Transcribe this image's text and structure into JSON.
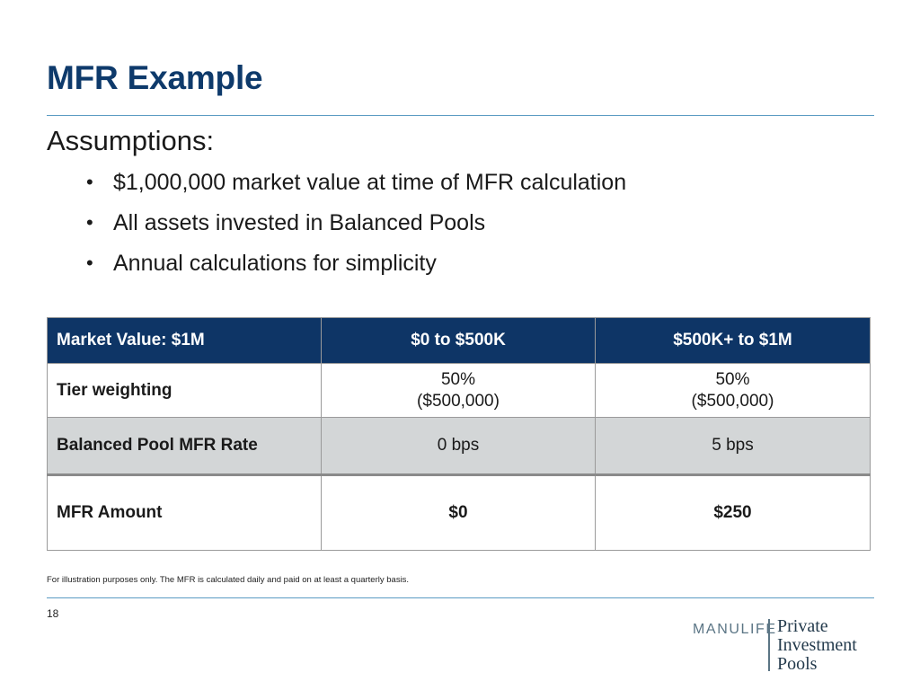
{
  "title": "MFR Example",
  "subtitle": "Assumptions:",
  "bullets": [
    "$1,000,000 market value at time of MFR calculation",
    "All assets invested in Balanced Pools",
    "Annual calculations for simplicity"
  ],
  "bullet_glyph": "•",
  "table": {
    "headers": [
      "Market Value: $1M",
      "$0 to $500K",
      "$500K+ to $1M"
    ],
    "rows": [
      {
        "label": "Tier weighting",
        "cells": [
          [
            "50%",
            "($500,000)"
          ],
          [
            "50%",
            "($500,000)"
          ]
        ]
      },
      {
        "label": "Balanced Pool MFR Rate",
        "cells": [
          [
            "0 bps"
          ],
          [
            "5 bps"
          ]
        ]
      },
      {
        "label": "MFR Amount",
        "cells": [
          [
            "$0"
          ],
          [
            "$250"
          ]
        ]
      }
    ]
  },
  "footnote": "For illustration purposes only. The MFR is calculated daily and paid on at least a quarterly basis.",
  "page_number": "18",
  "logo": {
    "brand": "MANULIFE",
    "product_lines": [
      "Private",
      "Investment",
      "Pools"
    ]
  },
  "colors": {
    "title": "#0e3a6b",
    "header_bg": "#0e3566",
    "shaded_row": "#d3d6d7",
    "rule": "#5b9bc3"
  }
}
